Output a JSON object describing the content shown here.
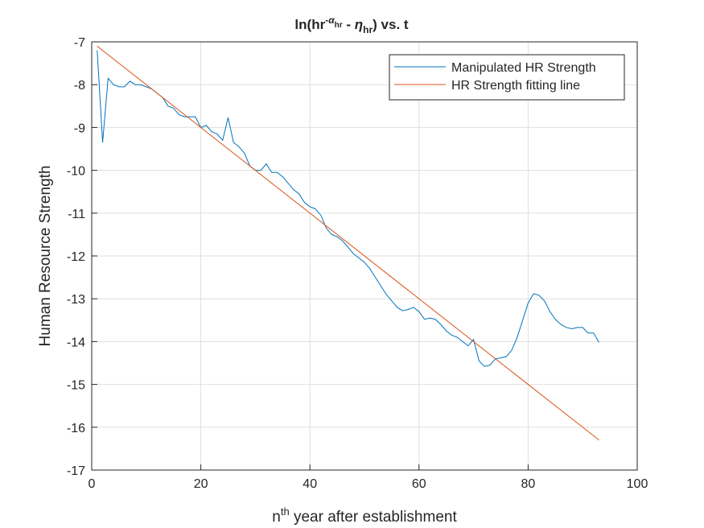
{
  "chart_data": {
    "type": "line",
    "title": [
      "ln(hr",
      "-",
      "α",
      "hr",
      " - ",
      "η",
      "hr",
      ") vs. t"
    ],
    "xlabel": [
      "n",
      "th",
      " year after establishment"
    ],
    "ylabel": "Human Resource Strength",
    "xlim": [
      0,
      100
    ],
    "xticks": [
      0,
      20,
      40,
      60,
      80,
      100
    ],
    "ylim": [
      -17,
      -7
    ],
    "yticks": [
      -17,
      -16,
      -15,
      -14,
      -13,
      -12,
      -11,
      -10,
      -9,
      -8,
      -7
    ],
    "grid": true,
    "legend": "northeast",
    "series": [
      {
        "name": "Manipulated HR Strength",
        "color": "#0072BD",
        "x": [
          1,
          2,
          3,
          4,
          5,
          6,
          7,
          8,
          9,
          10,
          11,
          12,
          13,
          14,
          15,
          16,
          17,
          18,
          19,
          20,
          21,
          22,
          23,
          24,
          25,
          26,
          27,
          28,
          29,
          30,
          31,
          32,
          33,
          34,
          35,
          36,
          37,
          38,
          39,
          40,
          41,
          42,
          43,
          44,
          45,
          46,
          47,
          48,
          49,
          50,
          51,
          52,
          53,
          54,
          55,
          56,
          57,
          58,
          59,
          60,
          61,
          62,
          63,
          64,
          65,
          66,
          67,
          68,
          69,
          70,
          71,
          72,
          73,
          74,
          75,
          76,
          77,
          78,
          79,
          80,
          81,
          82,
          83,
          84,
          85,
          86,
          87,
          88,
          89,
          90,
          91,
          92,
          93
        ],
        "values": [
          -7.2,
          -9.35,
          -7.85,
          -8.0,
          -8.05,
          -8.05,
          -7.92,
          -8.0,
          -8.0,
          -8.05,
          -8.1,
          -8.2,
          -8.3,
          -8.5,
          -8.55,
          -8.7,
          -8.75,
          -8.75,
          -8.75,
          -9.0,
          -8.95,
          -9.1,
          -9.15,
          -9.3,
          -8.77,
          -9.35,
          -9.45,
          -9.6,
          -9.9,
          -10.0,
          -10.0,
          -9.85,
          -10.05,
          -10.05,
          -10.15,
          -10.3,
          -10.45,
          -10.55,
          -10.75,
          -10.85,
          -10.9,
          -11.05,
          -11.35,
          -11.5,
          -11.55,
          -11.65,
          -11.8,
          -11.95,
          -12.05,
          -12.15,
          -12.3,
          -12.5,
          -12.7,
          -12.9,
          -13.05,
          -13.2,
          -13.28,
          -13.25,
          -13.2,
          -13.3,
          -13.48,
          -13.45,
          -13.48,
          -13.6,
          -13.75,
          -13.85,
          -13.9,
          -14.0,
          -14.1,
          -13.95,
          -14.45,
          -14.58,
          -14.55,
          -14.4,
          -14.38,
          -14.35,
          -14.2,
          -13.9,
          -13.5,
          -13.1,
          -12.88,
          -12.92,
          -13.05,
          -13.3,
          -13.48,
          -13.6,
          -13.67,
          -13.7,
          -13.67,
          -13.67,
          -13.8,
          -13.8,
          -14.02
        ]
      },
      {
        "name": "HR Strength fitting line",
        "color": "#D95319",
        "x": [
          1,
          93
        ],
        "values": [
          -7.1,
          -16.3
        ]
      }
    ]
  }
}
